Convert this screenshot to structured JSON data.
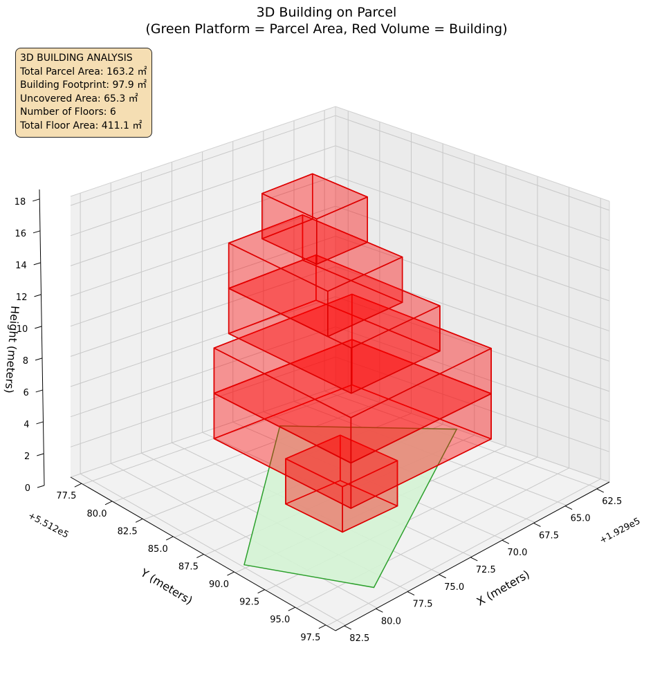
{
  "chart_data": {
    "type": "3d-bar",
    "title": "3D Building on Parcel",
    "subtitle": "(Green Platform = Parcel Area, Red Volume = Building)",
    "xlabel": "X (meters)",
    "ylabel": "Y (meters)",
    "zlabel": "Height (meters)",
    "x_offset_label": "+1.929e5",
    "y_offset_label": "+5.512e5",
    "x_ticks": [
      "62.5",
      "65.0",
      "67.5",
      "70.0",
      "72.5",
      "75.0",
      "77.5",
      "80.0",
      "82.5"
    ],
    "y_ticks": [
      "77.5",
      "80.0",
      "82.5",
      "85.0",
      "87.5",
      "90.0",
      "92.5",
      "95.0",
      "97.5"
    ],
    "z_ticks": [
      "0",
      "2",
      "4",
      "6",
      "8",
      "10",
      "12",
      "14",
      "16",
      "18"
    ],
    "xlim": [
      61.5,
      83.2
    ],
    "ylim": [
      76.6,
      98.3
    ],
    "zlim": [
      0,
      18.6
    ],
    "grid": true,
    "parcel": {
      "label": "Parcel Area",
      "color": "#2ca02c",
      "fill": "#d4f3d4",
      "polygon": [
        [
          63.6,
          83.3
        ],
        [
          74.7,
          97.3
        ],
        [
          81.5,
          93.6
        ],
        [
          71.1,
          76.6
        ]
      ],
      "z": 0
    },
    "building": {
      "label": "Building",
      "color": "#ff0000",
      "edge": "#dd0000",
      "floors": [
        {
          "floor": 1,
          "x": [
            71.2,
            75.8
          ],
          "y": [
            86.1,
            90.5
          ],
          "z": [
            0,
            3
          ]
        },
        {
          "floor": 2,
          "x": [
            66.8,
            77.9
          ],
          "y": [
            80.7,
            91.9
          ],
          "z": [
            3,
            6
          ]
        },
        {
          "floor": 3,
          "x": [
            66.8,
            77.9
          ],
          "y": [
            80.7,
            91.9
          ],
          "z": [
            6,
            9
          ]
        },
        {
          "floor": 4,
          "x": [
            66.0,
            75.9
          ],
          "y": [
            82.8,
            89.9
          ],
          "z": [
            9,
            12
          ]
        },
        {
          "floor": 5,
          "x": [
            66.0,
            74.0
          ],
          "y": [
            83.9,
            89.9
          ],
          "z": [
            12,
            15
          ]
        },
        {
          "floor": 6,
          "x": [
            66.8,
            71.2
          ],
          "y": [
            83.9,
            88.0
          ],
          "z": [
            15,
            18
          ]
        }
      ]
    }
  },
  "info": {
    "heading": "3D BUILDING ANALYSIS",
    "parcel_area": "Total Parcel Area: 163.2 ㎡",
    "footprint": "Building Footprint: 97.9 ㎡",
    "uncovered": "Uncovered Area: 65.3 ㎡",
    "floors": "Number of Floors: 6",
    "floor_area": "Total Floor Area: 411.1 ㎡"
  }
}
